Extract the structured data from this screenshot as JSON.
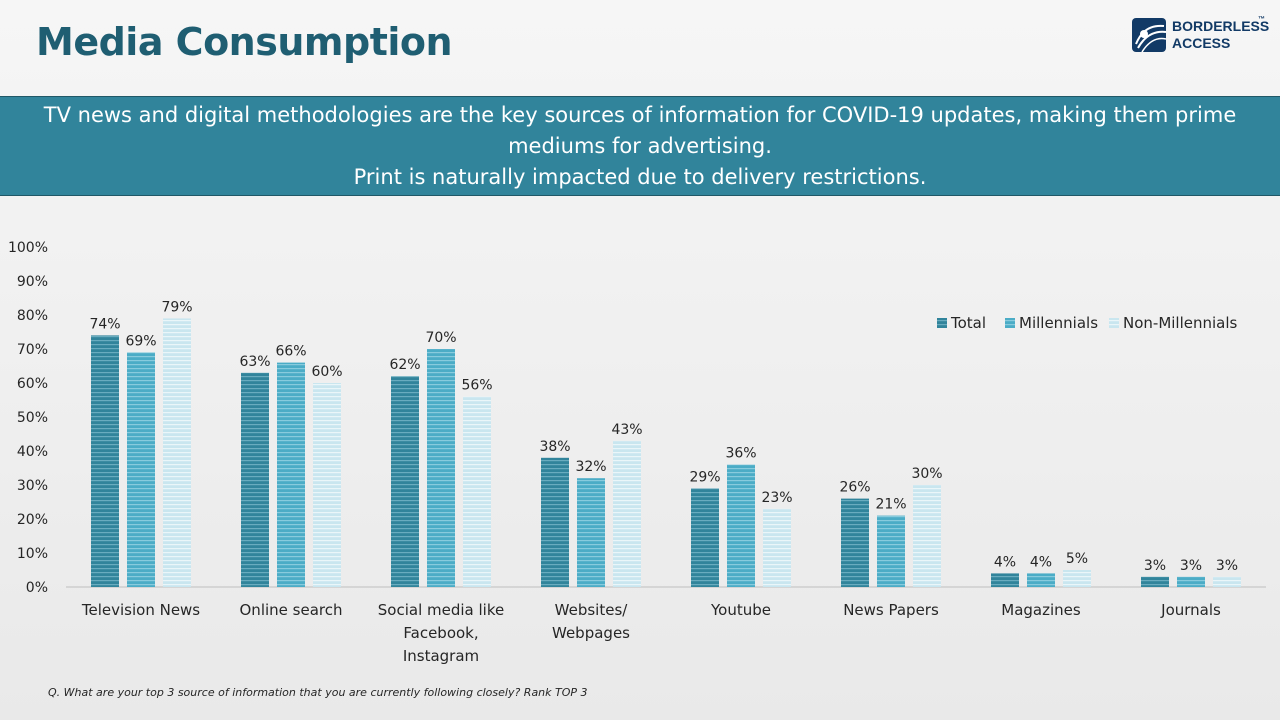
{
  "header": {
    "title": "Media Consumption",
    "logo_line1": "BORDERLESS",
    "logo_line2": "ACCESS",
    "logo_tm": "™"
  },
  "banner": {
    "line1": "TV news and digital methodologies are the key sources of information for COVID-19 updates, making them prime",
    "line2": "mediums for advertising.",
    "line3": "Print is naturally impacted due to delivery restrictions."
  },
  "colors": {
    "banner_bg": "#31849b",
    "title": "#1f5e72",
    "logo": "#123a66"
  },
  "chart_data": {
    "type": "bar",
    "categories": [
      "Television News",
      "Online search",
      "Social media like Facebook, Instagram",
      "Websites/ Webpages",
      "Youtube",
      "News Papers",
      "Magazines",
      "Journals"
    ],
    "category_lines": [
      [
        "Television News"
      ],
      [
        "Online search"
      ],
      [
        "Social media like",
        "Facebook,",
        "Instagram"
      ],
      [
        "Websites/",
        "Webpages"
      ],
      [
        "Youtube"
      ],
      [
        "News Papers"
      ],
      [
        "Magazines"
      ],
      [
        "Journals"
      ]
    ],
    "series": [
      {
        "name": "Total",
        "values": [
          74,
          63,
          62,
          38,
          29,
          26,
          4,
          3
        ],
        "color": "#31849b"
      },
      {
        "name": "Millennials",
        "values": [
          69,
          66,
          70,
          32,
          36,
          21,
          4,
          3
        ],
        "color": "#4bacc6"
      },
      {
        "name": "Non-Millennials",
        "values": [
          79,
          60,
          56,
          43,
          23,
          30,
          5,
          3
        ],
        "color": "#b7dde8"
      }
    ],
    "value_labels": [
      [
        "74%",
        "63%",
        "62%",
        "38%",
        "29%",
        "26%",
        "4%",
        "3%"
      ],
      [
        "69%",
        "66%",
        "70%",
        "32%",
        "36%",
        "21%",
        "4%",
        "3%"
      ],
      [
        "79%",
        "60%",
        "56%",
        "43%",
        "23%",
        "30%",
        "5%",
        "3%"
      ]
    ],
    "y_ticks": [
      "0%",
      "10%",
      "20%",
      "30%",
      "40%",
      "50%",
      "60%",
      "70%",
      "80%",
      "90%",
      "100%"
    ],
    "ylim": [
      0,
      100
    ],
    "grid": false,
    "legend_position": "top-right"
  },
  "footnote": "Q. What are your top 3 source of information that you are currently following closely? Rank TOP 3"
}
